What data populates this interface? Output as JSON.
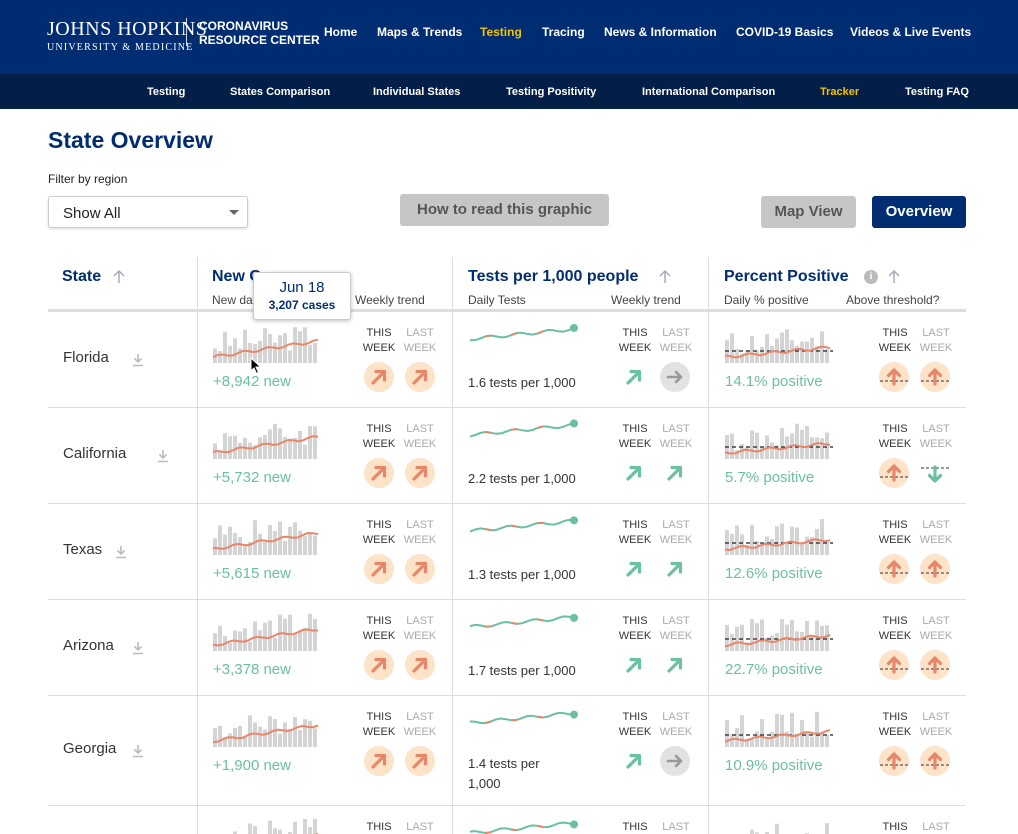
{
  "header": {
    "logo_line1": "JOHNS HOPKINS",
    "logo_line2": "UNIVERSITY & MEDICINE",
    "center_line1": "CORONAVIRUS",
    "center_line2": "RESOURCE CENTER",
    "nav": [
      "Home",
      "Maps & Trends",
      "Testing",
      "Tracing",
      "News & Information",
      "COVID-19 Basics",
      "Videos & Live Events"
    ],
    "active_nav": "Testing"
  },
  "subnav": {
    "items": [
      "Testing",
      "States Comparison",
      "Individual States",
      "Testing Positivity",
      "International Comparison",
      "Tracker",
      "Testing FAQ"
    ],
    "active": "Tracker"
  },
  "page": {
    "title": "State Overview",
    "filter_label": "Filter by region",
    "filter_value": "Show All",
    "how_to_read": "How to read this graphic",
    "map_view": "Map View",
    "overview": "Overview"
  },
  "table": {
    "col_state": "State",
    "col_new": "New C",
    "col_new_sub": "New da",
    "col_new_sub2": "Weekly trend",
    "col_tests": "Tests per 1,000 people",
    "col_tests_sub": "Daily Tests",
    "col_tests_sub2": "Weekly trend",
    "col_pos": "Percent Positive",
    "col_pos_sub": "Daily % positive",
    "col_pos_sub2": "Above threshold?",
    "this_week_1": "THIS",
    "this_week_2": "WEEK",
    "last_week_1": "LAST",
    "last_week_2": "WEEK",
    "rows": [
      {
        "state": "Florida",
        "new": "+8,942 new",
        "tests": "1.6 tests per 1,000",
        "positive": "14.1% positive",
        "tests_trend_this": "up",
        "tests_trend_last": "flat",
        "pos_this": "up",
        "pos_last": "up"
      },
      {
        "state": "California",
        "new": "+5,732 new",
        "tests": "2.2 tests per 1,000",
        "positive": "5.7% positive",
        "tests_trend_this": "up",
        "tests_trend_last": "up",
        "pos_this": "up",
        "pos_last": "down"
      },
      {
        "state": "Texas",
        "new": "+5,615 new",
        "tests": "1.3 tests per 1,000",
        "positive": "12.6% positive",
        "tests_trend_this": "up",
        "tests_trend_last": "up",
        "pos_this": "up",
        "pos_last": "up"
      },
      {
        "state": "Arizona",
        "new": "+3,378 new",
        "tests": "1.7 tests per 1,000",
        "positive": "22.7% positive",
        "tests_trend_this": "up",
        "tests_trend_last": "up",
        "pos_this": "up",
        "pos_last": "up"
      },
      {
        "state": "Georgia",
        "new": "+1,900 new",
        "tests": "1.4 tests per 1,000",
        "positive": "10.9% positive",
        "tests_trend_this": "up",
        "tests_trend_last": "flat",
        "pos_this": "up",
        "pos_last": "up"
      }
    ]
  },
  "tooltip": {
    "date": "Jun 18",
    "cases": "3,207 cases"
  },
  "colors": {
    "navy": "#002d72",
    "dark_navy": "#031e47",
    "gold": "#f1c400",
    "teal": "#6bbfa3",
    "salmon": "#e8866a",
    "peach": "#fde3c8",
    "bar_gray": "#d4d4d4"
  }
}
